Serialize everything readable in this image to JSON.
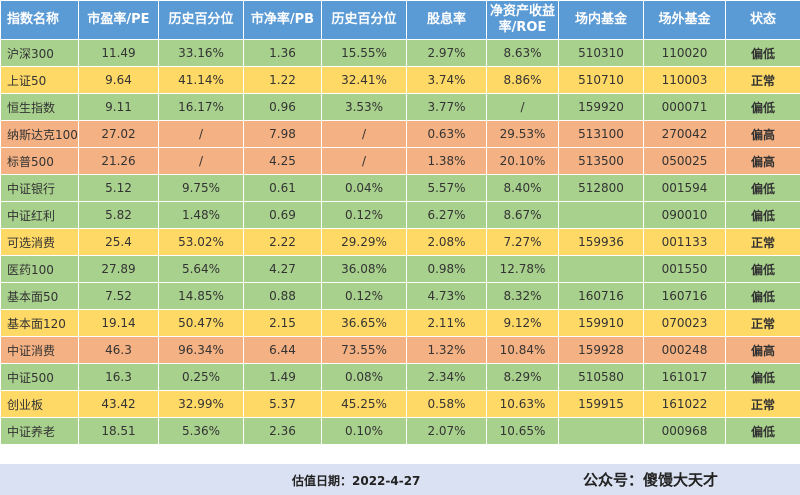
{
  "headers": [
    "指数名称",
    "市盈率/PE",
    "历史百分位",
    "市净率/PB",
    "历史百分位",
    "股息率",
    "净资产收益率/ROE",
    "场内基金",
    "场外基金",
    "状态"
  ],
  "colors": {
    "header": "#5b9bd5",
    "low": "#a9d18e",
    "normal": "#ffd966",
    "high": "#f4b183"
  },
  "rows": [
    {
      "tone": "green",
      "cells": [
        "沪深300",
        "11.49",
        "33.16%",
        "1.36",
        "15.55%",
        "2.97%",
        "8.63%",
        "510310",
        "110020",
        "偏低"
      ]
    },
    {
      "tone": "yellow",
      "cells": [
        "上证50",
        "9.64",
        "41.14%",
        "1.22",
        "32.41%",
        "3.74%",
        "8.86%",
        "510710",
        "110003",
        "正常"
      ]
    },
    {
      "tone": "green",
      "cells": [
        "恒生指数",
        "9.11",
        "16.17%",
        "0.96",
        "3.53%",
        "3.77%",
        "/",
        "159920",
        "000071",
        "偏低"
      ]
    },
    {
      "tone": "red",
      "cells": [
        "纳斯达克100",
        "27.02",
        "/",
        "7.98",
        "/",
        "0.63%",
        "29.53%",
        "513100",
        "270042",
        "偏高"
      ]
    },
    {
      "tone": "red",
      "cells": [
        "标普500",
        "21.26",
        "/",
        "4.25",
        "/",
        "1.38%",
        "20.10%",
        "513500",
        "050025",
        "偏高"
      ]
    },
    {
      "tone": "green",
      "cells": [
        "中证银行",
        "5.12",
        "9.75%",
        "0.61",
        "0.04%",
        "5.57%",
        "8.40%",
        "512800",
        "001594",
        "偏低"
      ]
    },
    {
      "tone": "green",
      "cells": [
        "中证红利",
        "5.82",
        "1.48%",
        "0.69",
        "0.12%",
        "6.27%",
        "8.67%",
        "",
        "090010",
        "偏低"
      ]
    },
    {
      "tone": "yellow",
      "cells": [
        "可选消费",
        "25.4",
        "53.02%",
        "2.22",
        "29.29%",
        "2.08%",
        "7.27%",
        "159936",
        "001133",
        "正常"
      ]
    },
    {
      "tone": "green",
      "cells": [
        "医药100",
        "27.89",
        "5.64%",
        "4.27",
        "36.08%",
        "0.98%",
        "12.78%",
        "",
        "001550",
        "偏低"
      ]
    },
    {
      "tone": "green",
      "cells": [
        "基本面50",
        "7.52",
        "14.85%",
        "0.88",
        "0.12%",
        "4.73%",
        "8.32%",
        "160716",
        "160716",
        "偏低"
      ]
    },
    {
      "tone": "yellow",
      "cells": [
        "基本面120",
        "19.14",
        "50.47%",
        "2.15",
        "36.65%",
        "2.11%",
        "9.12%",
        "159910",
        "070023",
        "正常"
      ]
    },
    {
      "tone": "red",
      "cells": [
        "中证消费",
        "46.3",
        "96.34%",
        "6.44",
        "73.55%",
        "1.32%",
        "10.84%",
        "159928",
        "000248",
        "偏高"
      ]
    },
    {
      "tone": "green",
      "cells": [
        "中证500",
        "16.3",
        "0.25%",
        "1.49",
        "0.08%",
        "2.34%",
        "8.29%",
        "510580",
        "161017",
        "偏低"
      ]
    },
    {
      "tone": "yellow",
      "cells": [
        "创业板",
        "43.42",
        "32.99%",
        "5.37",
        "45.25%",
        "0.58%",
        "10.63%",
        "159915",
        "161022",
        "正常"
      ]
    },
    {
      "tone": "green",
      "cells": [
        "中证养老",
        "18.51",
        "5.36%",
        "2.36",
        "0.10%",
        "2.07%",
        "10.65%",
        "",
        "000968",
        "偏低"
      ]
    }
  ],
  "footer": {
    "date": "估值日期：2022-4-27",
    "account": "公众号：傻馒大天才"
  }
}
